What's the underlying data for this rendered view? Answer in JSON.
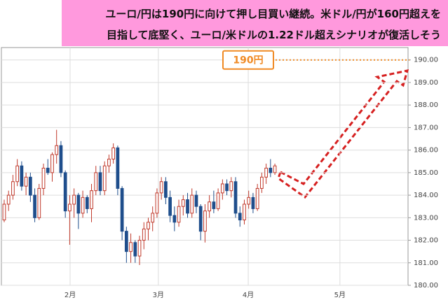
{
  "chart_data": {
    "type": "candlestick",
    "title": [
      "ユーロ/円は190円に向けて押し目買い継続。米ドル/円が160円超えを",
      "目指して底堅く、ユーロ/米ドルの1.22ドル超えシナリオが復活しそう"
    ],
    "series": [
      {
        "up_color": "#c0392b",
        "down_color": "#1f4e8c",
        "open": [
          182.9,
          183.6,
          184.0,
          184.6,
          185.3,
          184.4,
          184.8,
          184.0,
          183.0,
          184.3,
          185.2,
          185.0,
          185.8,
          186.2,
          185.0,
          183.3,
          183.6,
          184.0,
          183.2,
          183.9,
          183.4,
          184.2,
          185.0,
          184.2,
          185.3,
          185.6,
          186.1,
          184.3,
          182.4,
          181.5,
          181.9,
          181.3,
          182.0,
          182.5,
          182.8,
          183.2,
          184.1,
          184.6,
          183.9,
          183.1,
          182.8,
          183.5,
          183.8,
          183.2,
          184.0,
          183.5,
          182.4,
          183.3,
          183.7,
          183.4,
          184.1,
          184.5,
          184.2,
          184.6,
          183.2,
          182.9,
          183.6,
          183.9,
          183.4,
          184.3,
          184.8,
          185.2,
          185.0
        ],
        "high": [
          183.8,
          184.2,
          184.9,
          185.6,
          185.5,
          185.0,
          185.0,
          184.3,
          184.5,
          185.4,
          185.6,
          185.9,
          186.9,
          186.4,
          185.1,
          184.0,
          184.3,
          184.1,
          184.2,
          184.0,
          184.5,
          185.3,
          185.3,
          185.5,
          185.8,
          186.3,
          186.2,
          184.4,
          182.6,
          182.3,
          182.0,
          182.2,
          182.8,
          183.0,
          183.5,
          184.3,
          184.8,
          184.8,
          184.2,
          183.5,
          183.8,
          184.0,
          184.1,
          184.3,
          184.2,
          183.6,
          183.6,
          184.0,
          184.2,
          184.3,
          184.7,
          184.7,
          184.8,
          184.8,
          183.5,
          183.8,
          184.2,
          184.1,
          184.5,
          185.0,
          185.4,
          185.6,
          185.4
        ],
        "low": [
          182.8,
          183.3,
          183.8,
          184.4,
          184.2,
          184.0,
          183.7,
          182.8,
          182.9,
          184.0,
          184.9,
          184.6,
          185.4,
          184.8,
          183.0,
          181.8,
          183.0,
          182.5,
          183.0,
          183.2,
          182.8,
          184.0,
          184.0,
          184.0,
          185.0,
          185.4,
          184.0,
          182.0,
          181.0,
          181.0,
          181.0,
          180.9,
          181.6,
          182.0,
          182.4,
          183.0,
          183.8,
          183.6,
          182.8,
          182.4,
          182.6,
          183.1,
          183.0,
          183.0,
          183.2,
          182.0,
          181.9,
          183.0,
          183.2,
          183.3,
          183.8,
          184.0,
          183.9,
          183.0,
          182.6,
          182.7,
          183.4,
          183.2,
          183.3,
          184.1,
          184.5,
          184.8,
          184.9
        ],
        "close": [
          183.6,
          184.0,
          184.6,
          185.3,
          184.4,
          184.8,
          184.0,
          183.0,
          184.3,
          185.2,
          185.0,
          185.8,
          186.2,
          185.0,
          183.3,
          183.6,
          184.0,
          183.2,
          183.9,
          183.4,
          184.2,
          185.0,
          184.2,
          185.3,
          185.6,
          186.1,
          184.3,
          182.4,
          181.5,
          181.9,
          181.3,
          182.0,
          182.5,
          182.8,
          183.2,
          184.1,
          184.6,
          183.9,
          183.1,
          182.8,
          183.5,
          183.8,
          183.2,
          184.0,
          183.5,
          182.4,
          183.3,
          183.7,
          183.4,
          184.1,
          184.5,
          184.2,
          184.6,
          183.2,
          182.9,
          183.6,
          183.9,
          183.4,
          184.3,
          184.8,
          185.2,
          185.0,
          185.3
        ]
      }
    ],
    "xlim": [
      -0.64,
      92.5
    ],
    "xticks": [
      {
        "value": 15.1,
        "label": "2月"
      },
      {
        "value": 35.3,
        "label": "3月"
      },
      {
        "value": 55.9,
        "label": "4月"
      },
      {
        "value": 76.9,
        "label": "5月"
      }
    ],
    "ylim": [
      180,
      190.55
    ],
    "yticks": [
      {
        "value": 180,
        "label": "180.00"
      },
      {
        "value": 181,
        "label": "181.00"
      },
      {
        "value": 182,
        "label": "182.00"
      },
      {
        "value": 183,
        "label": "183.00"
      },
      {
        "value": 184,
        "label": "184.00"
      },
      {
        "value": 185,
        "label": "185.00"
      },
      {
        "value": 186,
        "label": "186.00"
      },
      {
        "value": 187,
        "label": "187.00"
      },
      {
        "value": 188,
        "label": "188.00"
      },
      {
        "value": 189,
        "label": "189.00"
      },
      {
        "value": 190,
        "label": "190.00"
      }
    ],
    "grid": true,
    "annotations": [
      {
        "label": "190円",
        "value": 190,
        "color": "#f08a24"
      }
    ]
  }
}
